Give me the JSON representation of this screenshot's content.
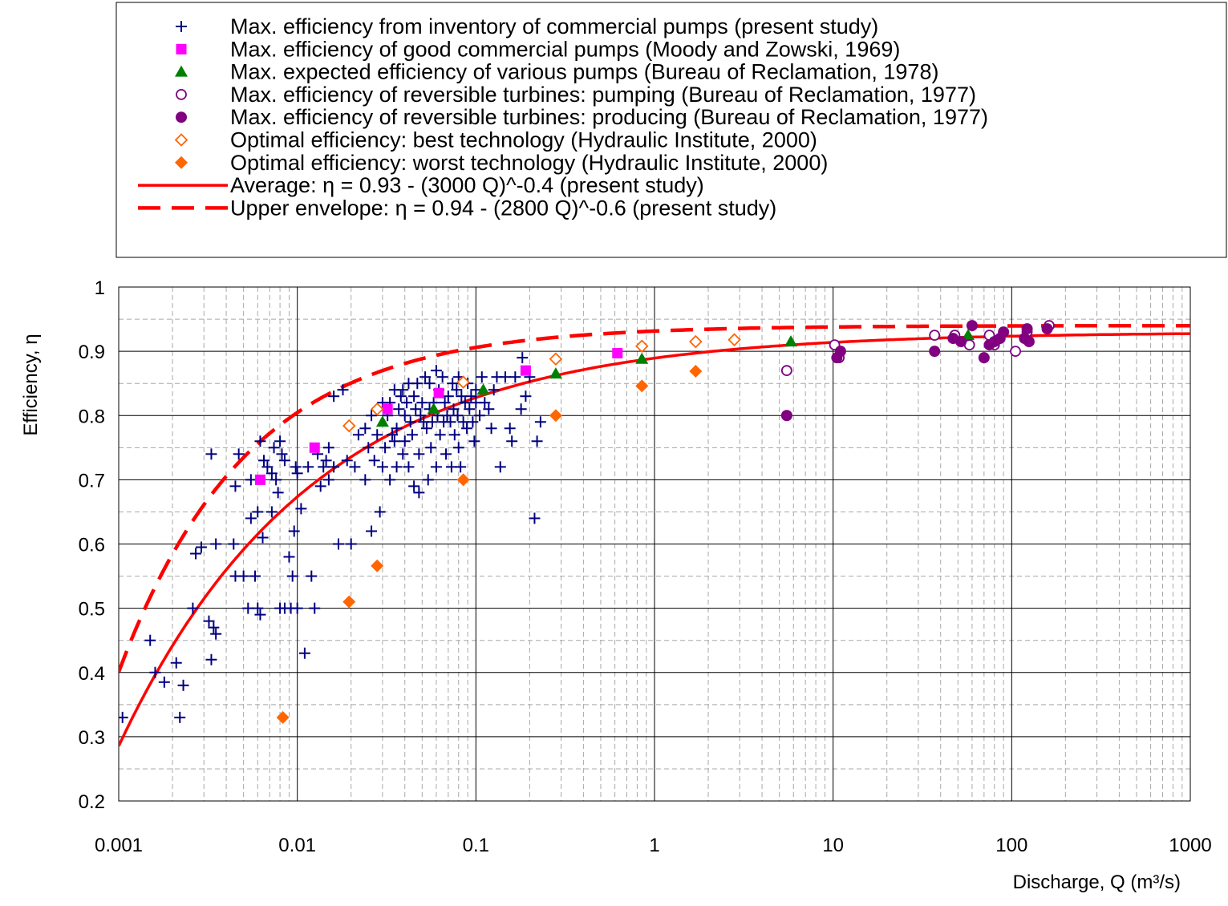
{
  "chart_data": {
    "type": "scatter",
    "xscale": "log",
    "xlim": [
      0.001,
      1000
    ],
    "ylim": [
      0.2,
      1.0
    ],
    "xlabel": "Discharge, Q (m³/s)",
    "ylabel": "Efficiency, η",
    "x_ticks": [
      "0.001",
      "0.01",
      "0.1",
      "1",
      "10",
      "100",
      "1000"
    ],
    "y_ticks": [
      "0.2",
      "0.3",
      "0.4",
      "0.5",
      "0.6",
      "0.7",
      "0.8",
      "0.9",
      "1"
    ],
    "grid": true,
    "legend_position": "top",
    "series": [
      {
        "name": "Max. efficiency from inventory of commercial pumps (present study)",
        "marker": "plus",
        "color": "#000080",
        "points": [
          [
            0.00105,
            0.33
          ],
          [
            0.0015,
            0.45
          ],
          [
            0.0016,
            0.4
          ],
          [
            0.0018,
            0.385
          ],
          [
            0.0021,
            0.415
          ],
          [
            0.0022,
            0.33
          ],
          [
            0.0023,
            0.38
          ],
          [
            0.0026,
            0.5
          ],
          [
            0.0027,
            0.585
          ],
          [
            0.0029,
            0.595
          ],
          [
            0.0032,
            0.48
          ],
          [
            0.0033,
            0.74
          ],
          [
            0.0033,
            0.42
          ],
          [
            0.0034,
            0.47
          ],
          [
            0.0035,
            0.46
          ],
          [
            0.0035,
            0.6
          ],
          [
            0.0044,
            0.6
          ],
          [
            0.0045,
            0.69
          ],
          [
            0.0045,
            0.55
          ],
          [
            0.0047,
            0.74
          ],
          [
            0.005,
            0.55
          ],
          [
            0.0053,
            0.5
          ],
          [
            0.0055,
            0.64
          ],
          [
            0.0055,
            0.7
          ],
          [
            0.0058,
            0.55
          ],
          [
            0.006,
            0.5
          ],
          [
            0.006,
            0.65
          ],
          [
            0.0062,
            0.49
          ],
          [
            0.0062,
            0.76
          ],
          [
            0.0064,
            0.61
          ],
          [
            0.0065,
            0.73
          ],
          [
            0.0068,
            0.72
          ],
          [
            0.0072,
            0.71
          ],
          [
            0.0072,
            0.65
          ],
          [
            0.0074,
            0.75
          ],
          [
            0.0076,
            0.7
          ],
          [
            0.0078,
            0.68
          ],
          [
            0.008,
            0.76
          ],
          [
            0.008,
            0.5
          ],
          [
            0.0082,
            0.74
          ],
          [
            0.0085,
            0.5
          ],
          [
            0.0085,
            0.73
          ],
          [
            0.009,
            0.58
          ],
          [
            0.0092,
            0.5
          ],
          [
            0.0094,
            0.55
          ],
          [
            0.0096,
            0.62
          ],
          [
            0.0098,
            0.72
          ],
          [
            0.01,
            0.71
          ],
          [
            0.01,
            0.5
          ],
          [
            0.0105,
            0.655
          ],
          [
            0.011,
            0.43
          ],
          [
            0.0115,
            0.72
          ],
          [
            0.012,
            0.55
          ],
          [
            0.0125,
            0.5
          ],
          [
            0.013,
            0.74
          ],
          [
            0.0135,
            0.69
          ],
          [
            0.014,
            0.72
          ],
          [
            0.0145,
            0.73
          ],
          [
            0.015,
            0.75
          ],
          [
            0.015,
            0.7
          ],
          [
            0.016,
            0.83
          ],
          [
            0.016,
            0.72
          ],
          [
            0.017,
            0.6
          ],
          [
            0.018,
            0.84
          ],
          [
            0.019,
            0.73
          ],
          [
            0.02,
            0.6
          ],
          [
            0.021,
            0.72
          ],
          [
            0.022,
            0.77
          ],
          [
            0.024,
            0.78
          ],
          [
            0.024,
            0.7
          ],
          [
            0.025,
            0.75
          ],
          [
            0.026,
            0.62
          ],
          [
            0.026,
            0.8
          ],
          [
            0.027,
            0.73
          ],
          [
            0.028,
            0.77
          ],
          [
            0.029,
            0.65
          ],
          [
            0.03,
            0.82
          ],
          [
            0.03,
            0.72
          ],
          [
            0.031,
            0.75
          ],
          [
            0.032,
            0.8
          ],
          [
            0.033,
            0.82
          ],
          [
            0.033,
            0.7
          ],
          [
            0.034,
            0.77
          ],
          [
            0.035,
            0.84
          ],
          [
            0.035,
            0.76
          ],
          [
            0.036,
            0.78
          ],
          [
            0.036,
            0.72
          ],
          [
            0.037,
            0.81
          ],
          [
            0.038,
            0.83
          ],
          [
            0.039,
            0.84
          ],
          [
            0.039,
            0.74
          ],
          [
            0.04,
            0.76
          ],
          [
            0.04,
            0.8
          ],
          [
            0.041,
            0.82
          ],
          [
            0.042,
            0.85
          ],
          [
            0.042,
            0.72
          ],
          [
            0.043,
            0.79
          ],
          [
            0.044,
            0.77
          ],
          [
            0.045,
            0.83
          ],
          [
            0.045,
            0.69
          ],
          [
            0.046,
            0.81
          ],
          [
            0.047,
            0.85
          ],
          [
            0.048,
            0.68
          ],
          [
            0.048,
            0.74
          ],
          [
            0.049,
            0.8
          ],
          [
            0.05,
            0.82
          ],
          [
            0.051,
            0.79
          ],
          [
            0.052,
            0.86
          ],
          [
            0.053,
            0.78
          ],
          [
            0.054,
            0.7
          ],
          [
            0.055,
            0.81
          ],
          [
            0.055,
            0.85
          ],
          [
            0.056,
            0.75
          ],
          [
            0.057,
            0.79
          ],
          [
            0.058,
            0.82
          ],
          [
            0.06,
            0.87
          ],
          [
            0.06,
            0.72
          ],
          [
            0.061,
            0.8
          ],
          [
            0.062,
            0.84
          ],
          [
            0.063,
            0.77
          ],
          [
            0.065,
            0.86
          ],
          [
            0.066,
            0.79
          ],
          [
            0.067,
            0.82
          ],
          [
            0.068,
            0.74
          ],
          [
            0.069,
            0.8
          ],
          [
            0.07,
            0.83
          ],
          [
            0.072,
            0.79
          ],
          [
            0.073,
            0.72
          ],
          [
            0.074,
            0.85
          ],
          [
            0.075,
            0.81
          ],
          [
            0.076,
            0.77
          ],
          [
            0.078,
            0.84
          ],
          [
            0.079,
            0.8
          ],
          [
            0.08,
            0.86
          ],
          [
            0.08,
            0.75
          ],
          [
            0.082,
            0.72
          ],
          [
            0.083,
            0.83
          ],
          [
            0.085,
            0.79
          ],
          [
            0.087,
            0.82
          ],
          [
            0.089,
            0.78
          ],
          [
            0.09,
            0.85
          ],
          [
            0.092,
            0.81
          ],
          [
            0.094,
            0.83
          ],
          [
            0.096,
            0.79
          ],
          [
            0.098,
            0.76
          ],
          [
            0.1,
            0.82
          ],
          [
            0.1,
            0.84
          ],
          [
            0.105,
            0.8
          ],
          [
            0.108,
            0.86
          ],
          [
            0.112,
            0.82
          ],
          [
            0.118,
            0.81
          ],
          [
            0.122,
            0.78
          ],
          [
            0.126,
            0.84
          ],
          [
            0.131,
            0.86
          ],
          [
            0.137,
            0.72
          ],
          [
            0.146,
            0.86
          ],
          [
            0.155,
            0.78
          ],
          [
            0.159,
            0.76
          ],
          [
            0.166,
            0.86
          ],
          [
            0.179,
            0.81
          ],
          [
            0.182,
            0.89
          ],
          [
            0.19,
            0.83
          ],
          [
            0.2,
            0.86
          ],
          [
            0.213,
            0.64
          ],
          [
            0.22,
            0.76
          ],
          [
            0.23,
            0.79
          ]
        ]
      },
      {
        "name": "Max. efficiency of good commercial pumps (Moody and Zowski, 1969)",
        "marker": "square",
        "color": "#ff00ff",
        "points": [
          [
            0.0062,
            0.7
          ],
          [
            0.0125,
            0.75
          ],
          [
            0.032,
            0.81
          ],
          [
            0.062,
            0.835
          ],
          [
            0.19,
            0.87
          ],
          [
            0.62,
            0.897
          ]
        ]
      },
      {
        "name": "Max. expected efficiency of various pumps (Bureau of Reclamation, 1978)",
        "marker": "triangle",
        "color": "#008000",
        "points": [
          [
            0.03,
            0.79
          ],
          [
            0.058,
            0.81
          ],
          [
            0.11,
            0.84
          ],
          [
            0.28,
            0.865
          ],
          [
            0.85,
            0.888
          ],
          [
            5.8,
            0.915
          ],
          [
            57,
            0.925
          ]
        ]
      },
      {
        "name": "Max. efficiency of reversible turbines: pumping (Bureau of Reclamation, 1977)",
        "marker": "circle-open",
        "color": "#800080",
        "points": [
          [
            5.5,
            0.87
          ],
          [
            10.2,
            0.91
          ],
          [
            10.8,
            0.89
          ],
          [
            37,
            0.925
          ],
          [
            48,
            0.925
          ],
          [
            58,
            0.91
          ],
          [
            75,
            0.925
          ],
          [
            80,
            0.91
          ],
          [
            105,
            0.9
          ],
          [
            122,
            0.93
          ],
          [
            162,
            0.94
          ]
        ]
      },
      {
        "name": "Max. efficiency of reversible turbines: producing (Bureau of Reclamation, 1977)",
        "marker": "circle",
        "color": "#800080",
        "points": [
          [
            5.5,
            0.8
          ],
          [
            10.5,
            0.89
          ],
          [
            11,
            0.9
          ],
          [
            37,
            0.9
          ],
          [
            47,
            0.92
          ],
          [
            52,
            0.915
          ],
          [
            60,
            0.94
          ],
          [
            70,
            0.89
          ],
          [
            75,
            0.91
          ],
          [
            80,
            0.915
          ],
          [
            86,
            0.92
          ],
          [
            90,
            0.93
          ],
          [
            118,
            0.92
          ],
          [
            122,
            0.935
          ],
          [
            125,
            0.915
          ],
          [
            158,
            0.935
          ]
        ]
      },
      {
        "name": "Optimal efficiency: best technology (Hydraulic Institute, 2000)",
        "marker": "diamond-open",
        "color": "#ff6600",
        "points": [
          [
            0.0195,
            0.784
          ],
          [
            0.028,
            0.81
          ],
          [
            0.085,
            0.852
          ],
          [
            0.28,
            0.888
          ],
          [
            0.85,
            0.908
          ],
          [
            1.7,
            0.915
          ],
          [
            2.8,
            0.918
          ]
        ]
      },
      {
        "name": "Optimal efficiency: worst technology (Hydraulic Institute, 2000)",
        "marker": "diamond",
        "color": "#ff6600",
        "points": [
          [
            0.0083,
            0.33
          ],
          [
            0.0195,
            0.51
          ],
          [
            0.028,
            0.566
          ],
          [
            0.085,
            0.7
          ],
          [
            0.28,
            0.8
          ],
          [
            0.85,
            0.846
          ],
          [
            1.7,
            0.869
          ]
        ]
      },
      {
        "name": "Average: η = 0.93 - (3000 Q)^-0.4 (present study)",
        "marker": "line",
        "color": "#ff0000",
        "formula": {
          "a": 0.93,
          "b": 3000,
          "p": -0.4
        }
      },
      {
        "name": "Upper envelope: η = 0.94 - (2800 Q)^-0.6 (present study)",
        "marker": "dashed-line",
        "color": "#ff0000",
        "formula": {
          "a": 0.94,
          "b": 2800,
          "p": -0.6
        }
      }
    ]
  }
}
